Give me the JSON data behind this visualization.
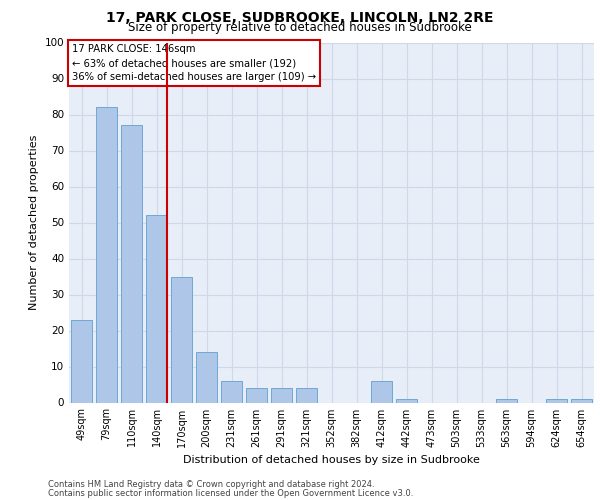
{
  "title1": "17, PARK CLOSE, SUDBROOKE, LINCOLN, LN2 2RE",
  "title2": "Size of property relative to detached houses in Sudbrooke",
  "xlabel": "Distribution of detached houses by size in Sudbrooke",
  "ylabel": "Number of detached properties",
  "categories": [
    "49sqm",
    "79sqm",
    "110sqm",
    "140sqm",
    "170sqm",
    "200sqm",
    "231sqm",
    "261sqm",
    "291sqm",
    "321sqm",
    "352sqm",
    "382sqm",
    "412sqm",
    "442sqm",
    "473sqm",
    "503sqm",
    "533sqm",
    "563sqm",
    "594sqm",
    "624sqm",
    "654sqm"
  ],
  "values": [
    23,
    82,
    77,
    52,
    35,
    14,
    6,
    4,
    4,
    4,
    0,
    0,
    6,
    1,
    0,
    0,
    0,
    1,
    0,
    1,
    1
  ],
  "bar_color": "#aec6e8",
  "bar_edgecolor": "#6fa8d4",
  "highlight_index": 3,
  "highlight_line_color": "#cc0000",
  "annotation_text": "17 PARK CLOSE: 146sqm\n← 63% of detached houses are smaller (192)\n36% of semi-detached houses are larger (109) →",
  "annotation_box_color": "#ffffff",
  "annotation_box_edgecolor": "#cc0000",
  "ylim": [
    0,
    100
  ],
  "yticks": [
    0,
    10,
    20,
    30,
    40,
    50,
    60,
    70,
    80,
    90,
    100
  ],
  "grid_color": "#d0d8e8",
  "background_color": "#e8eef8",
  "footer1": "Contains HM Land Registry data © Crown copyright and database right 2024.",
  "footer2": "Contains public sector information licensed under the Open Government Licence v3.0."
}
